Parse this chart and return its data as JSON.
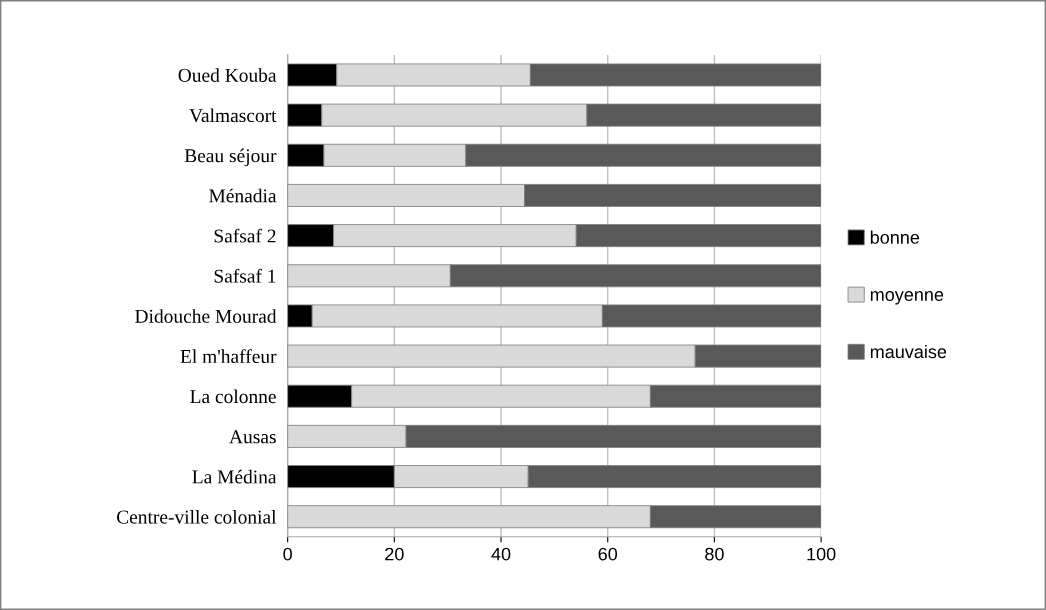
{
  "chart_data": {
    "type": "bar",
    "orientation": "horizontal",
    "stacked": true,
    "categories": [
      "Oued Kouba",
      "Valmascort",
      "Beau séjour",
      "Ménadia",
      "Safsaf 2",
      "Safsaf 1",
      "Didouche Mourad",
      "El m'haffeur",
      "La colonne",
      "Ausas",
      "La Médina",
      "Centre-ville colonial"
    ],
    "series": [
      {
        "name": "bonne",
        "color": "#000000",
        "values": [
          9.2,
          6.4,
          6.8,
          0,
          8.6,
          0,
          4.6,
          0,
          12,
          0,
          20,
          0
        ]
      },
      {
        "name": "moyenne",
        "color": "#d9d9d9",
        "values": [
          36.3,
          49.7,
          26.6,
          44.4,
          45.5,
          30.5,
          54.4,
          76.4,
          56,
          22.2,
          25.1,
          68
        ]
      },
      {
        "name": "mauvaise",
        "color": "#595959",
        "values": [
          54.5,
          43.9,
          66.6,
          55.6,
          45.9,
          69.5,
          41,
          23.6,
          32,
          77.8,
          54.9,
          32
        ]
      }
    ],
    "xlim": [
      0,
      100
    ],
    "xticks": [
      0,
      20,
      40,
      60,
      80,
      100
    ],
    "grid": "x",
    "legend": "right"
  }
}
